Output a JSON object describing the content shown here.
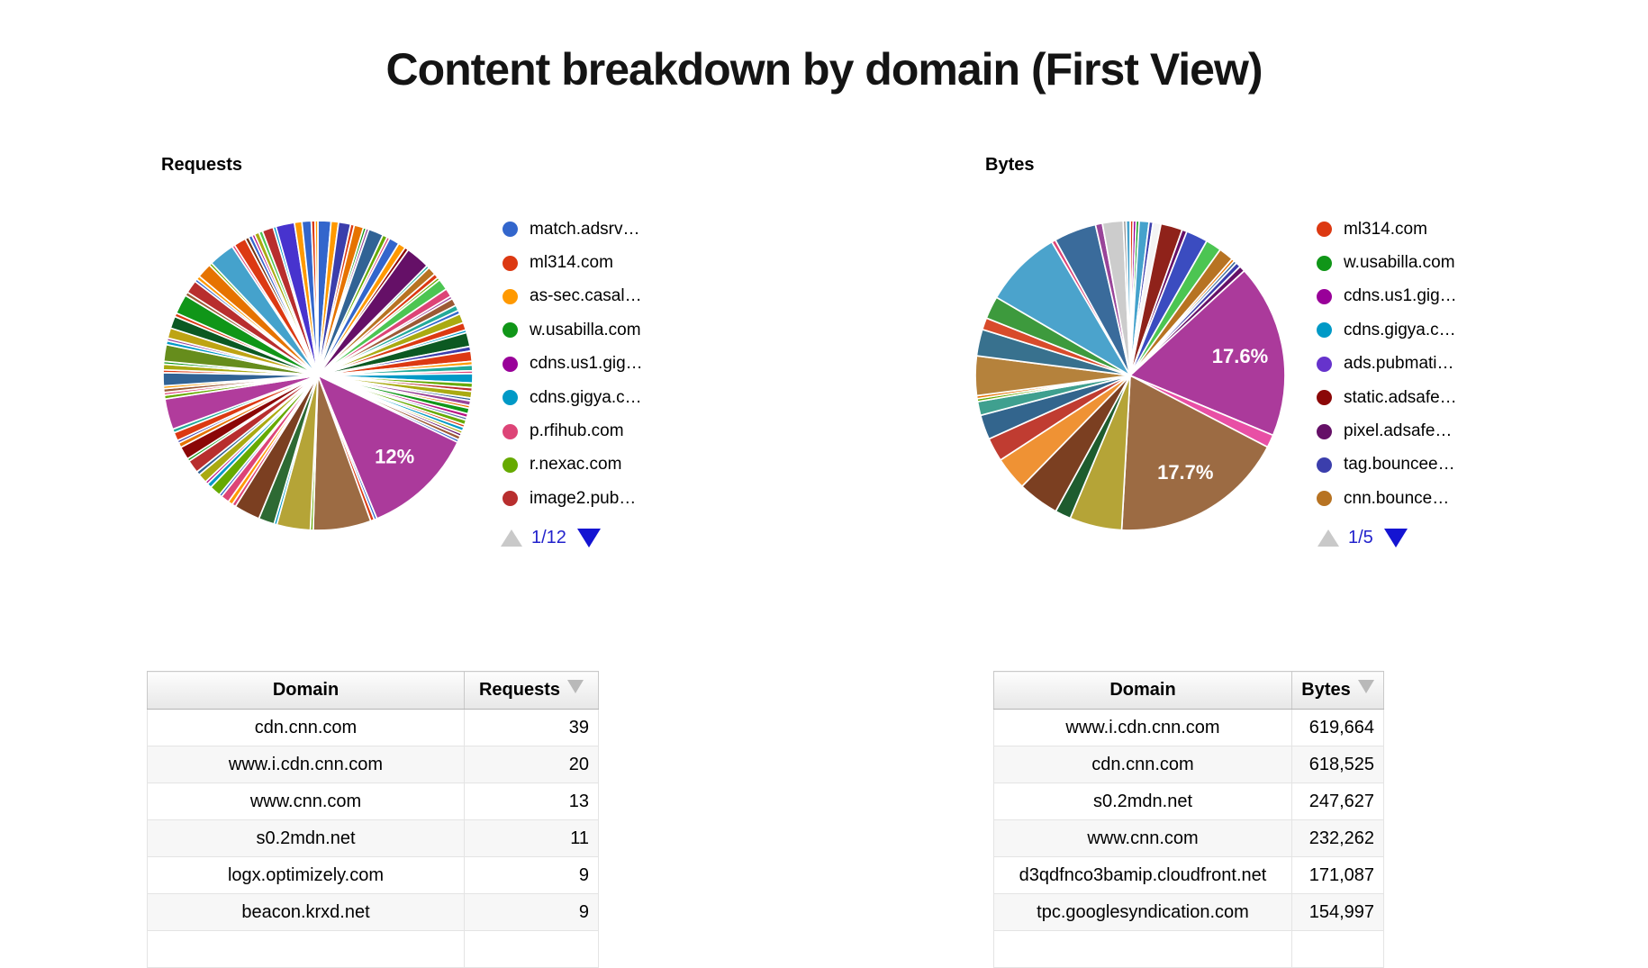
{
  "page": {
    "title": "Content breakdown by domain (First View)"
  },
  "charts": [
    {
      "label": "Requests",
      "pager": {
        "label": "1/12"
      }
    },
    {
      "label": "Bytes",
      "pager": {
        "label": "1/5"
      }
    }
  ],
  "tables": [
    {
      "headers": [
        "Domain",
        "Requests"
      ],
      "sorted_by": "Requests",
      "rows": [
        [
          "cdn.cnn.com",
          "39"
        ],
        [
          "www.i.cdn.cnn.com",
          "20"
        ],
        [
          "www.cnn.com",
          "13"
        ],
        [
          "s0.2mdn.net",
          "11"
        ],
        [
          "logx.optimizely.com",
          "9"
        ],
        [
          "beacon.krxd.net",
          "9"
        ]
      ]
    },
    {
      "headers": [
        "Domain",
        "Bytes"
      ],
      "sorted_by": "Bytes",
      "rows": [
        [
          "www.i.cdn.cnn.com",
          "619,664"
        ],
        [
          "cdn.cnn.com",
          "618,525"
        ],
        [
          "s0.2mdn.net",
          "247,627"
        ],
        [
          "www.cnn.com",
          "232,262"
        ],
        [
          "d3qdfnco3bamip.cloudfront.net",
          "171,087"
        ],
        [
          "tpc.googlesyndication.com",
          "154,997"
        ]
      ]
    }
  ],
  "chart_data": [
    {
      "type": "pie",
      "title": "Requests",
      "legend_position": "right",
      "legend_page": "1/12",
      "visible_slice_labels": [
        "12%"
      ],
      "legend": [
        {
          "label": "match.adsrv…",
          "color": "#3366CC"
        },
        {
          "label": "ml314.com",
          "color": "#DC3912"
        },
        {
          "label": "as-sec.casal…",
          "color": "#FF9900"
        },
        {
          "label": "w.usabilla.com",
          "color": "#109618"
        },
        {
          "label": "cdns.us1.gig…",
          "color": "#990099"
        },
        {
          "label": "cdns.gigya.c…",
          "color": "#0099C6"
        },
        {
          "label": "p.rfihub.com",
          "color": "#DD4477"
        },
        {
          "label": "r.nexac.com",
          "color": "#66AA00"
        },
        {
          "label": "image2.pub…",
          "color": "#B82E2E"
        }
      ],
      "top_values": {
        "cdn.cnn.com": 39,
        "www.i.cdn.cnn.com": 20,
        "www.cnn.com": 13,
        "s0.2mdn.net": 11,
        "logx.optimizely.com": 9,
        "beacon.krxd.net": 9
      },
      "slices": [
        [
          1.4,
          "#3366CC"
        ],
        [
          0.8,
          "#FF9900"
        ],
        [
          1.3,
          "#3B3EAC"
        ],
        [
          0.4,
          "#DC3912"
        ],
        [
          1.0,
          "#E67300"
        ],
        [
          0.3,
          "#109618"
        ],
        [
          0.3,
          "#994499"
        ],
        [
          1.6,
          "#316395"
        ],
        [
          0.5,
          "#66AA00"
        ],
        [
          0.3,
          "#DD4477"
        ],
        [
          1.1,
          "#3366CC"
        ],
        [
          0.8,
          "#FF9900"
        ],
        [
          0.4,
          "#8B0707"
        ],
        [
          2.6,
          "#651067"
        ],
        [
          0.3,
          "#22AA99"
        ],
        [
          0.9,
          "#B77322"
        ],
        [
          0.5,
          "#DC3912"
        ],
        [
          0.3,
          "#66AA00"
        ],
        [
          1.2,
          "#4CC552"
        ],
        [
          0.9,
          "#DD4477"
        ],
        [
          0.3,
          "#994499"
        ],
        [
          0.8,
          "#9C5935"
        ],
        [
          0.6,
          "#22AA99"
        ],
        [
          0.4,
          "#3366CC"
        ],
        [
          1.0,
          "#AAAA11"
        ],
        [
          0.8,
          "#DC3912"
        ],
        [
          0.3,
          "#0099C6"
        ],
        [
          1.5,
          "#0C5922"
        ],
        [
          0.5,
          "#3B3EAC"
        ],
        [
          1.1,
          "#DC3912"
        ],
        [
          0.4,
          "#FF9900"
        ],
        [
          0.6,
          "#22AA99"
        ],
        [
          0.3,
          "#DD4477"
        ],
        [
          1.0,
          "#0099C6"
        ],
        [
          0.5,
          "#66AA00"
        ],
        [
          0.4,
          "#B82E2E"
        ],
        [
          0.7,
          "#AAAA11"
        ],
        [
          0.3,
          "#316395"
        ],
        [
          0.5,
          "#994499"
        ],
        [
          0.3,
          "#E67300"
        ],
        [
          0.6,
          "#109618"
        ],
        [
          0.4,
          "#B91383"
        ],
        [
          0.3,
          "#5574A6"
        ],
        [
          0.5,
          "#66AA00"
        ],
        [
          0.3,
          "#DC3912"
        ],
        [
          0.4,
          "#0099C6"
        ],
        [
          0.3,
          "#AAAA11"
        ],
        [
          0.3,
          "#651067"
        ],
        [
          0.4,
          "#9C5935"
        ],
        [
          0.3,
          "#3366CC"
        ],
        [
          12.0,
          "#AB3A9B",
          "12%"
        ],
        [
          0.3,
          "#3366CC"
        ],
        [
          0.4,
          "#DC3912"
        ],
        [
          6.2,
          "#9C6B43"
        ],
        [
          0.3,
          "#66AA00"
        ],
        [
          3.6,
          "#B5A437"
        ],
        [
          0.3,
          "#0099C6"
        ],
        [
          1.7,
          "#2D6A33"
        ],
        [
          2.8,
          "#7B3F21"
        ],
        [
          0.4,
          "#DD4477"
        ],
        [
          0.5,
          "#FF9900"
        ],
        [
          0.9,
          "#DD4477"
        ],
        [
          0.3,
          "#3366CC"
        ],
        [
          1.2,
          "#66AA00"
        ],
        [
          0.5,
          "#0099C6"
        ],
        [
          0.3,
          "#B91383"
        ],
        [
          1.0,
          "#AAAA11"
        ],
        [
          0.4,
          "#316395"
        ],
        [
          1.4,
          "#B82E2E"
        ],
        [
          0.3,
          "#109618"
        ],
        [
          1.4,
          "#8B0707"
        ],
        [
          0.5,
          "#E67300"
        ],
        [
          0.3,
          "#3B3EAC"
        ],
        [
          0.9,
          "#DC3912"
        ],
        [
          0.4,
          "#22AA99"
        ],
        [
          3.3,
          "#B13C9C"
        ],
        [
          0.4,
          "#66AA00"
        ],
        [
          0.3,
          "#DD4477"
        ],
        [
          0.4,
          "#9C5935"
        ],
        [
          0.3,
          "#FF9900"
        ],
        [
          1.4,
          "#316395"
        ],
        [
          0.3,
          "#DC3912"
        ],
        [
          0.6,
          "#AAAA11"
        ],
        [
          0.3,
          "#109618"
        ],
        [
          1.8,
          "#668D1C"
        ],
        [
          0.4,
          "#0099C6"
        ],
        [
          0.3,
          "#994499"
        ],
        [
          1.1,
          "#BEA413"
        ],
        [
          1.3,
          "#0C5922"
        ],
        [
          0.4,
          "#DC3912"
        ],
        [
          2.1,
          "#109618"
        ],
        [
          0.4,
          "#9C5935"
        ],
        [
          1.4,
          "#B82E2E"
        ],
        [
          0.3,
          "#3366CC"
        ],
        [
          0.4,
          "#FF9900"
        ],
        [
          1.6,
          "#E67300"
        ],
        [
          0.3,
          "#66AA00"
        ],
        [
          2.8,
          "#45A2CC"
        ],
        [
          0.3,
          "#DD4477"
        ],
        [
          1.3,
          "#DC3912"
        ],
        [
          0.4,
          "#743411"
        ],
        [
          0.4,
          "#3366CC"
        ],
        [
          0.3,
          "#B91383"
        ],
        [
          0.5,
          "#AAAA11"
        ],
        [
          0.4,
          "#4CC552"
        ],
        [
          1.2,
          "#B82E2E"
        ],
        [
          0.3,
          "#0099C6"
        ],
        [
          2.0,
          "#4733CE"
        ],
        [
          0.8,
          "#FF9900"
        ],
        [
          1.0,
          "#3366CC"
        ],
        [
          0.4,
          "#DC3912"
        ],
        [
          0.3,
          "#FF9900"
        ]
      ]
    },
    {
      "type": "pie",
      "title": "Bytes",
      "legend_position": "right",
      "legend_page": "1/5",
      "visible_slice_labels": [
        "17.6%",
        "17.7%"
      ],
      "legend": [
        {
          "label": "ml314.com",
          "color": "#DC3912"
        },
        {
          "label": "w.usabilla.com",
          "color": "#109618"
        },
        {
          "label": "cdns.us1.gig…",
          "color": "#990099"
        },
        {
          "label": "cdns.gigya.c…",
          "color": "#0099C6"
        },
        {
          "label": "ads.pubmati…",
          "color": "#6633CC"
        },
        {
          "label": "static.adsafe…",
          "color": "#8B0707"
        },
        {
          "label": "pixel.adsafe…",
          "color": "#651067"
        },
        {
          "label": "tag.bouncee…",
          "color": "#3B3EAC"
        },
        {
          "label": "cnn.bounce…",
          "color": "#B77322"
        }
      ],
      "top_values": {
        "www.i.cdn.cnn.com": 619664,
        "cdn.cnn.com": 618525,
        "s0.2mdn.net": 247627,
        "www.cnn.com": 232262,
        "d3qdfnco3bamip.cloudfront.net": 171087,
        "tpc.googlesyndication.com": 154997
      },
      "slices": [
        [
          0.3,
          "#DC3912"
        ],
        [
          0.3,
          "#990099"
        ],
        [
          0.3,
          "#109618"
        ],
        [
          1.0,
          "#45A2CC"
        ],
        [
          0.4,
          "#3B3EAC"
        ],
        [
          0.8,
          "#F4F4F4"
        ],
        [
          2.2,
          "#8F221A"
        ],
        [
          0.5,
          "#651067"
        ],
        [
          2.2,
          "#3B4CC0"
        ],
        [
          1.6,
          "#4CC552"
        ],
        [
          1.5,
          "#B77322"
        ],
        [
          0.3,
          "#E67300"
        ],
        [
          0.3,
          "#316395"
        ],
        [
          0.5,
          "#3B3EAC"
        ],
        [
          0.6,
          "#651067"
        ],
        [
          17.6,
          "#AB3A9B",
          "17.6%"
        ],
        [
          1.3,
          "#E84FA5"
        ],
        [
          17.7,
          "#9C6B43",
          "17.7%"
        ],
        [
          5.3,
          "#B5A437"
        ],
        [
          1.6,
          "#1E5C2E"
        ],
        [
          4.2,
          "#7B3F21"
        ],
        [
          3.4,
          "#EF9234"
        ],
        [
          2.4,
          "#C03C31"
        ],
        [
          2.5,
          "#33658D"
        ],
        [
          1.4,
          "#3FA08F"
        ],
        [
          0.3,
          "#66AA00"
        ],
        [
          0.3,
          "#E67300"
        ],
        [
          4.0,
          "#B5823C"
        ],
        [
          2.7,
          "#38718E"
        ],
        [
          1.2,
          "#D84B2B"
        ],
        [
          2.3,
          "#3D9A3D"
        ],
        [
          7.9,
          "#4BA3CC"
        ],
        [
          0.4,
          "#DD4477"
        ],
        [
          4.3,
          "#3A6B9B"
        ],
        [
          0.7,
          "#994499"
        ],
        [
          2.1,
          "#CCCCCC"
        ],
        [
          0.3,
          "#999999"
        ],
        [
          0.4,
          "#45A2CC"
        ]
      ]
    }
  ]
}
